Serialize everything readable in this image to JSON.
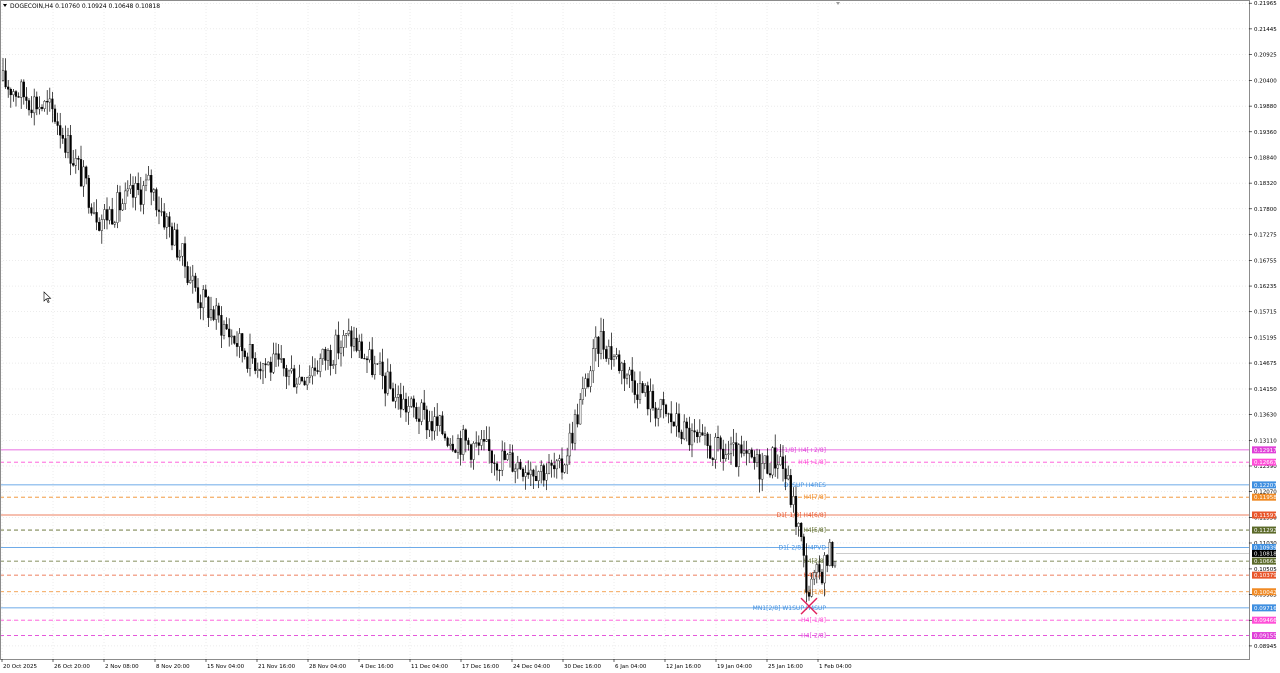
{
  "header": {
    "symbol_line": "DOGECOIN,H4  0.10760 0.10924 0.10648 0.10818"
  },
  "colors": {
    "background": "#ffffff",
    "grid": "#d8d8d8",
    "candle": "#000000",
    "magenta": "#e040d8",
    "pink_dash": "#ff4fd8",
    "blue": "#3f8fe0",
    "orange": "#f08a24",
    "red_orange": "#e8552a",
    "olive": "#5c6a2a",
    "cross": "#e0205a"
  },
  "chart_data": {
    "type": "line",
    "title": "DOGECOIN,H4",
    "ohlc_last": {
      "open": 0.1076,
      "high": 0.10924,
      "low": 0.10648,
      "close": 0.10818
    },
    "ylim": [
      0.0868,
      0.2203
    ],
    "y_ticks": [
      "0.21965",
      "0.21445",
      "0.20925",
      "0.20400",
      "0.19880",
      "0.19360",
      "0.18840",
      "0.18320",
      "0.17800",
      "0.17275",
      "0.16755",
      "0.16235",
      "0.15715",
      "0.15195",
      "0.14675",
      "0.14150",
      "0.13630",
      "0.13110",
      "0.12590",
      "0.12070",
      "0.11550",
      "0.11030",
      "0.10505",
      "0.09985",
      "0.09465",
      "0.08945"
    ],
    "x_ticks": [
      "20 Oct 2025",
      "26 Oct 20:00",
      "2 Nov 08:00",
      "8 Nov 20:00",
      "15 Nov 04:00",
      "21 Nov 16:00",
      "28 Nov 04:00",
      "4 Dec 16:00",
      "11 Dec 04:00",
      "17 Dec 16:00",
      "24 Dec 04:00",
      "30 Dec 16:00",
      "6 Jan 04:00",
      "12 Jan 16:00",
      "19 Jan 04:00",
      "25 Jan 16:00",
      "1 Feb 04:00"
    ],
    "grid": true,
    "series": [
      {
        "x": [
          "20 Oct",
          "26 Oct",
          "2 Nov",
          "8 Nov",
          "15 Nov",
          "21 Nov",
          "28 Nov",
          "4 Dec",
          "11 Dec",
          "17 Dec",
          "24 Dec",
          "30 Dec",
          "6 Jan",
          "12 Jan",
          "19 Jan",
          "25 Jan",
          "27 Jan",
          "29 Jan",
          "31 Jan",
          "1 Feb",
          "2 Feb"
        ],
        "values": [
          0.204,
          0.1975,
          0.176,
          0.183,
          0.16,
          0.148,
          0.144,
          0.152,
          0.139,
          0.132,
          0.1275,
          0.1245,
          0.152,
          0.139,
          0.13,
          0.126,
          0.128,
          0.119,
          0.112,
          0.1,
          0.108
        ]
      }
    ],
    "levels": [
      {
        "price": 0.12917,
        "label": "D1[1/8] H4[+2/8]",
        "tag": "0.12917",
        "color": "#e040d8",
        "style": "solid"
      },
      {
        "price": 0.12667,
        "label": "H4[+1/8]",
        "tag": "0.12667",
        "color": "#ff4fd8",
        "style": "dash"
      },
      {
        "price": 0.12207,
        "label": "D1SUP H4RES",
        "tag": "0.12207",
        "color": "#3f8fe0",
        "style": "solid"
      },
      {
        "price": 0.11958,
        "label": "H4[7/8]",
        "tag": "0.11958",
        "color": "#f08a24",
        "style": "dash"
      },
      {
        "price": 0.11597,
        "label": "D1[-1/8] H4[6/8]",
        "tag": "0.11597",
        "color": "#e8552a",
        "style": "solid"
      },
      {
        "price": 0.11292,
        "label": "H4[5/8]",
        "tag": "0.11292",
        "color": "#5c6a2a",
        "style": "dash"
      },
      {
        "price": 0.10939,
        "label": "D1[-2/8] H4PVD",
        "tag": "0.10939",
        "color": "#3f8fe0",
        "style": "solid"
      },
      {
        "price": 0.10818,
        "label": "",
        "tag": "0.10818",
        "color": "#000000",
        "style": "none"
      },
      {
        "price": 0.10663,
        "label": "H4[3/8]",
        "tag": "0.10663",
        "color": "#5c6a2a",
        "style": "dash"
      },
      {
        "price": 0.10379,
        "label": "H4[2/8]",
        "tag": "0.10379",
        "color": "#e8552a",
        "style": "dash"
      },
      {
        "price": 0.10042,
        "label": "H4[1/8]",
        "tag": "0.10042",
        "color": "#f08a24",
        "style": "dash"
      },
      {
        "price": 0.09716,
        "label": "MN1[2/8] W1SUP H4SUP",
        "tag": "0.09716",
        "color": "#3f8fe0",
        "style": "solid"
      },
      {
        "price": 0.09466,
        "label": "H4[-1/8]",
        "tag": "0.09466",
        "color": "#ff4fd8",
        "style": "dash"
      },
      {
        "price": 0.09155,
        "label": "H4[-2/8]",
        "tag": "0.09155",
        "color": "#e040d8",
        "style": "dash"
      }
    ]
  }
}
